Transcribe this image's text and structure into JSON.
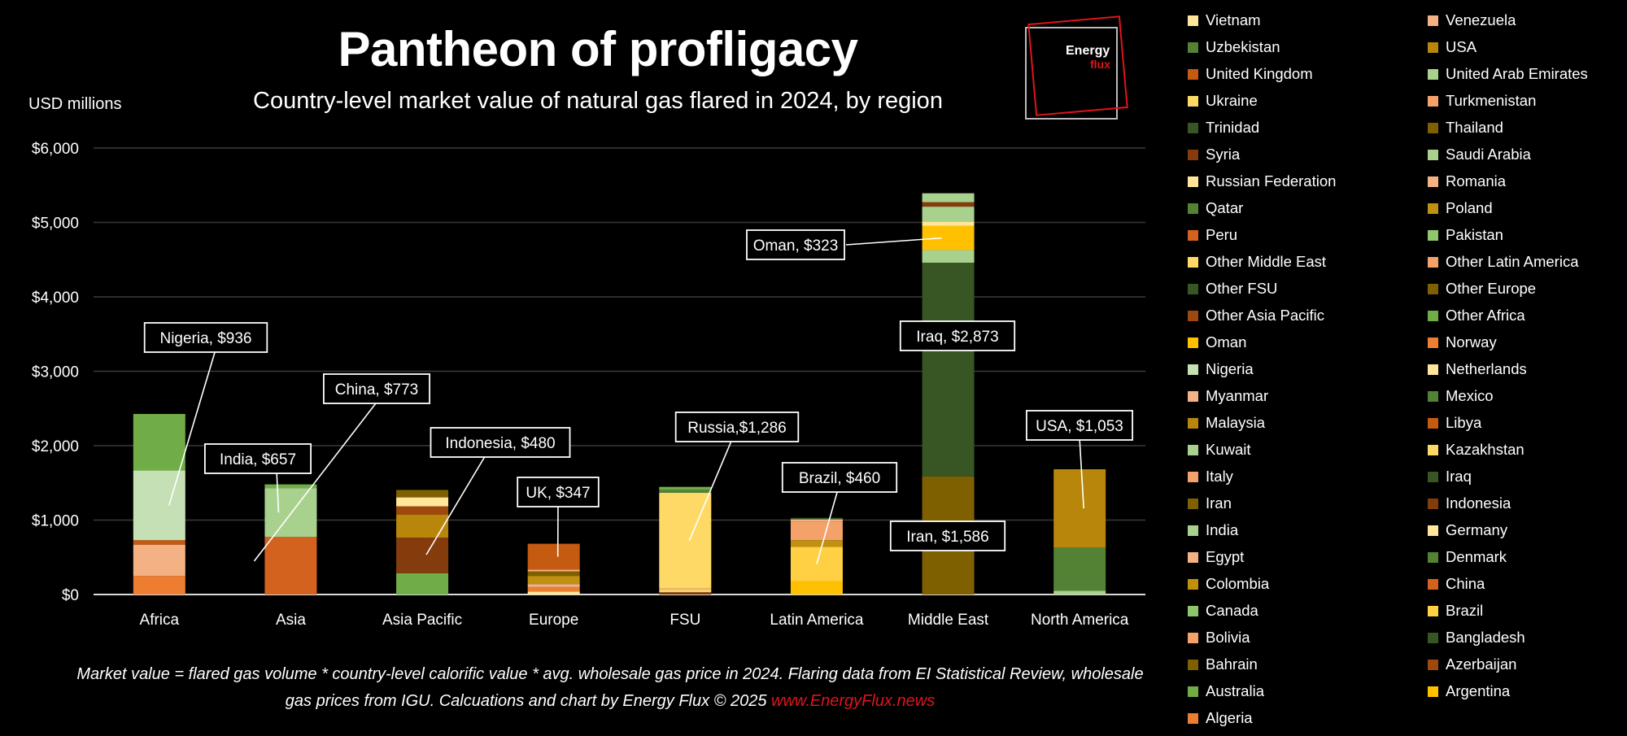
{
  "header": {
    "title": "Pantheon of profligacy",
    "subtitle": "Country-level market value of natural gas flared in 2024, by region",
    "y_unit": "USD millions"
  },
  "logo": {
    "line1": "Energy",
    "line2": "flux"
  },
  "footnote": {
    "line1": "Market value = flared gas volume * country-level calorific value * avg. wholesale gas price in 2024.  Flaring data from EI Statistical Review, wholesale",
    "line2": "gas prices from IGU. Calcuations and chart by Energy Flux © 2025 ",
    "url_red": "www.EnergyFlux",
    "url_tail": ".news"
  },
  "chart_data": {
    "type": "bar",
    "stacked": true,
    "categories": [
      "Africa",
      "Asia",
      "Asia Pacific",
      "Europe",
      "FSU",
      "Latin America",
      "Middle East",
      "North America"
    ],
    "ylim": [
      0,
      6000
    ],
    "yticks": [
      "$0",
      "$1,000",
      "$2,000",
      "$3,000",
      "$4,000",
      "$5,000",
      "$6,000"
    ],
    "ylabel": "USD millions",
    "grid": true,
    "legend_position": "right",
    "stacks": [
      {
        "category": "Africa",
        "segments": [
          {
            "name": "Algeria",
            "value": 250,
            "color": "#ed7d31"
          },
          {
            "name": "Egypt",
            "value": 420,
            "color": "#f4b183"
          },
          {
            "name": "Libya",
            "value": 60,
            "color": "#c55a11"
          },
          {
            "name": "Nigeria",
            "value": 936,
            "color": "#c5e0b4"
          },
          {
            "name": "Other Africa",
            "value": 760,
            "color": "#70ad47"
          }
        ]
      },
      {
        "category": "Asia",
        "segments": [
          {
            "name": "China",
            "value": 773,
            "color": "#d3621f"
          },
          {
            "name": "India",
            "value": 657,
            "color": "#a9d18e"
          },
          {
            "name": "Canada",
            "value": 50,
            "color": "#70ad47"
          }
        ]
      },
      {
        "category": "Asia Pacific",
        "segments": [
          {
            "name": "Australia",
            "value": 285,
            "color": "#70ad47"
          },
          {
            "name": "Indonesia",
            "value": 480,
            "color": "#843c0c"
          },
          {
            "name": "Malaysia",
            "value": 310,
            "color": "#b8860b"
          },
          {
            "name": "Other Asia Pacific",
            "value": 110,
            "color": "#9e480e"
          },
          {
            "name": "Vietnam",
            "value": 120,
            "color": "#ffe699"
          },
          {
            "name": "Thailand",
            "value": 100,
            "color": "#7f6000"
          }
        ]
      },
      {
        "category": "Europe",
        "segments": [
          {
            "name": "Netherlands",
            "value": 40,
            "color": "#ffe699"
          },
          {
            "name": "Norway",
            "value": 60,
            "color": "#ed7d31"
          },
          {
            "name": "Italy",
            "value": 40,
            "color": "#f4b183"
          },
          {
            "name": "Poland",
            "value": 110,
            "color": "#c0900f"
          },
          {
            "name": "Other Europe",
            "value": 60,
            "color": "#7f6000"
          },
          {
            "name": "Romania",
            "value": 25,
            "color": "#f4b183"
          },
          {
            "name": "UK",
            "value": 347,
            "color": "#c55a11"
          }
        ]
      },
      {
        "category": "FSU",
        "segments": [
          {
            "name": "Azerbaijan",
            "value": 30,
            "color": "#843c0c"
          },
          {
            "name": "Kazakhstan",
            "value": 30,
            "color": "#ffd966"
          },
          {
            "name": "Turkmenistan",
            "value": 20,
            "color": "#f4b183"
          },
          {
            "name": "Russia",
            "value": 1286,
            "color": "#ffd966"
          },
          {
            "name": "Other FSU",
            "value": 40,
            "color": "#548235"
          },
          {
            "name": "Uzbekistan",
            "value": 40,
            "color": "#70ad47"
          }
        ]
      },
      {
        "category": "Latin America",
        "segments": [
          {
            "name": "Argentina",
            "value": 180,
            "color": "#ffc000"
          },
          {
            "name": "Brazil",
            "value": 460,
            "color": "#ffd044"
          },
          {
            "name": "Colombia",
            "value": 90,
            "color": "#c0900f"
          },
          {
            "name": "Other Latin America",
            "value": 250,
            "color": "#f4a26a"
          },
          {
            "name": "Venezuela",
            "value": 30,
            "color": "#f4b183"
          },
          {
            "name": "Trinidad",
            "value": 20,
            "color": "#375623"
          }
        ]
      },
      {
        "category": "Middle East",
        "segments": [
          {
            "name": "Iran",
            "value": 1586,
            "color": "#7f6000"
          },
          {
            "name": "Iraq",
            "value": 2873,
            "color": "#375623"
          },
          {
            "name": "Kuwait",
            "value": 170,
            "color": "#a9d18e"
          },
          {
            "name": "Oman",
            "value": 323,
            "color": "#ffc000"
          },
          {
            "name": "Other Middle East",
            "value": 60,
            "color": "#ffe699"
          },
          {
            "name": "Saudi Arabia",
            "value": 200,
            "color": "#a9d18e"
          },
          {
            "name": "Syria",
            "value": 60,
            "color": "#843c0c"
          },
          {
            "name": "United Arab Emirates",
            "value": 120,
            "color": "#a9d18e"
          }
        ]
      },
      {
        "category": "North America",
        "segments": [
          {
            "name": "Canada",
            "value": 50,
            "color": "#a9d18e"
          },
          {
            "name": "Mexico",
            "value": 580,
            "color": "#548235"
          },
          {
            "name": "USA",
            "value": 1053,
            "color": "#b8860b"
          }
        ]
      }
    ],
    "annotations": [
      {
        "text": "Nigeria, $936",
        "category": "Africa"
      },
      {
        "text": "India, $657",
        "category": "Asia"
      },
      {
        "text": "China, $773",
        "category": "Asia"
      },
      {
        "text": "Indonesia, $480",
        "category": "Asia Pacific"
      },
      {
        "text": "UK, $347",
        "category": "Europe"
      },
      {
        "text": "Russia,$1,286",
        "category": "FSU"
      },
      {
        "text": "Brazil, $460",
        "category": "Latin America"
      },
      {
        "text": "Oman, $323",
        "category": "Middle East"
      },
      {
        "text": "Iraq, $2,873",
        "category": "Middle East"
      },
      {
        "text": "Iran, $1,586",
        "category": "Middle East"
      },
      {
        "text": "USA, $1,053",
        "category": "North America"
      }
    ],
    "legend": [
      {
        "label": "Vietnam",
        "color": "#ffe699"
      },
      {
        "label": "Venezuela",
        "color": "#f4b183"
      },
      {
        "label": "Uzbekistan",
        "color": "#548235"
      },
      {
        "label": "USA",
        "color": "#b8860b"
      },
      {
        "label": "United Kingdom",
        "color": "#c55a11"
      },
      {
        "label": "United Arab Emirates",
        "color": "#a9d18e"
      },
      {
        "label": "Ukraine",
        "color": "#ffd966"
      },
      {
        "label": "Turkmenistan",
        "color": "#f4a26a"
      },
      {
        "label": "Trinidad",
        "color": "#375623"
      },
      {
        "label": "Thailand",
        "color": "#7f6000"
      },
      {
        "label": "Syria",
        "color": "#843c0c"
      },
      {
        "label": "Saudi Arabia",
        "color": "#a9d18e"
      },
      {
        "label": "Russian Federation",
        "color": "#ffe699"
      },
      {
        "label": "Romania",
        "color": "#f4b183"
      },
      {
        "label": "Qatar",
        "color": "#548235"
      },
      {
        "label": "Poland",
        "color": "#c0900f"
      },
      {
        "label": "Peru",
        "color": "#d3621f"
      },
      {
        "label": "Pakistan",
        "color": "#8fc66b"
      },
      {
        "label": "Other Middle East",
        "color": "#ffd966"
      },
      {
        "label": "Other Latin America",
        "color": "#f4a26a"
      },
      {
        "label": "Other FSU",
        "color": "#375623"
      },
      {
        "label": "Other Europe",
        "color": "#7f6000"
      },
      {
        "label": "Other Asia Pacific",
        "color": "#9e480e"
      },
      {
        "label": "Other Africa",
        "color": "#70ad47"
      },
      {
        "label": "Oman",
        "color": "#ffc000"
      },
      {
        "label": "Norway",
        "color": "#ed7d31"
      },
      {
        "label": "Nigeria",
        "color": "#c5e0b4"
      },
      {
        "label": "Netherlands",
        "color": "#ffe699"
      },
      {
        "label": "Myanmar",
        "color": "#f4b183"
      },
      {
        "label": "Mexico",
        "color": "#548235"
      },
      {
        "label": "Malaysia",
        "color": "#b8860b"
      },
      {
        "label": "Libya",
        "color": "#c55a11"
      },
      {
        "label": "Kuwait",
        "color": "#a9d18e"
      },
      {
        "label": "Kazakhstan",
        "color": "#ffd966"
      },
      {
        "label": "Italy",
        "color": "#f4a26a"
      },
      {
        "label": "Iraq",
        "color": "#375623"
      },
      {
        "label": "Iran",
        "color": "#7f6000"
      },
      {
        "label": "Indonesia",
        "color": "#843c0c"
      },
      {
        "label": "India",
        "color": "#a9d18e"
      },
      {
        "label": "Germany",
        "color": "#ffe699"
      },
      {
        "label": "Egypt",
        "color": "#f4b183"
      },
      {
        "label": "Denmark",
        "color": "#548235"
      },
      {
        "label": "Colombia",
        "color": "#c0900f"
      },
      {
        "label": "China",
        "color": "#d3621f"
      },
      {
        "label": "Canada",
        "color": "#8fc66b"
      },
      {
        "label": "Brazil",
        "color": "#ffd044"
      },
      {
        "label": "Bolivia",
        "color": "#f4a26a"
      },
      {
        "label": "Bangladesh",
        "color": "#375623"
      },
      {
        "label": "Bahrain",
        "color": "#7f6000"
      },
      {
        "label": "Azerbaijan",
        "color": "#9e480e"
      },
      {
        "label": "Australia",
        "color": "#70ad47"
      },
      {
        "label": "Argentina",
        "color": "#ffc000"
      },
      {
        "label": "Algeria",
        "color": "#ed7d31"
      }
    ]
  }
}
